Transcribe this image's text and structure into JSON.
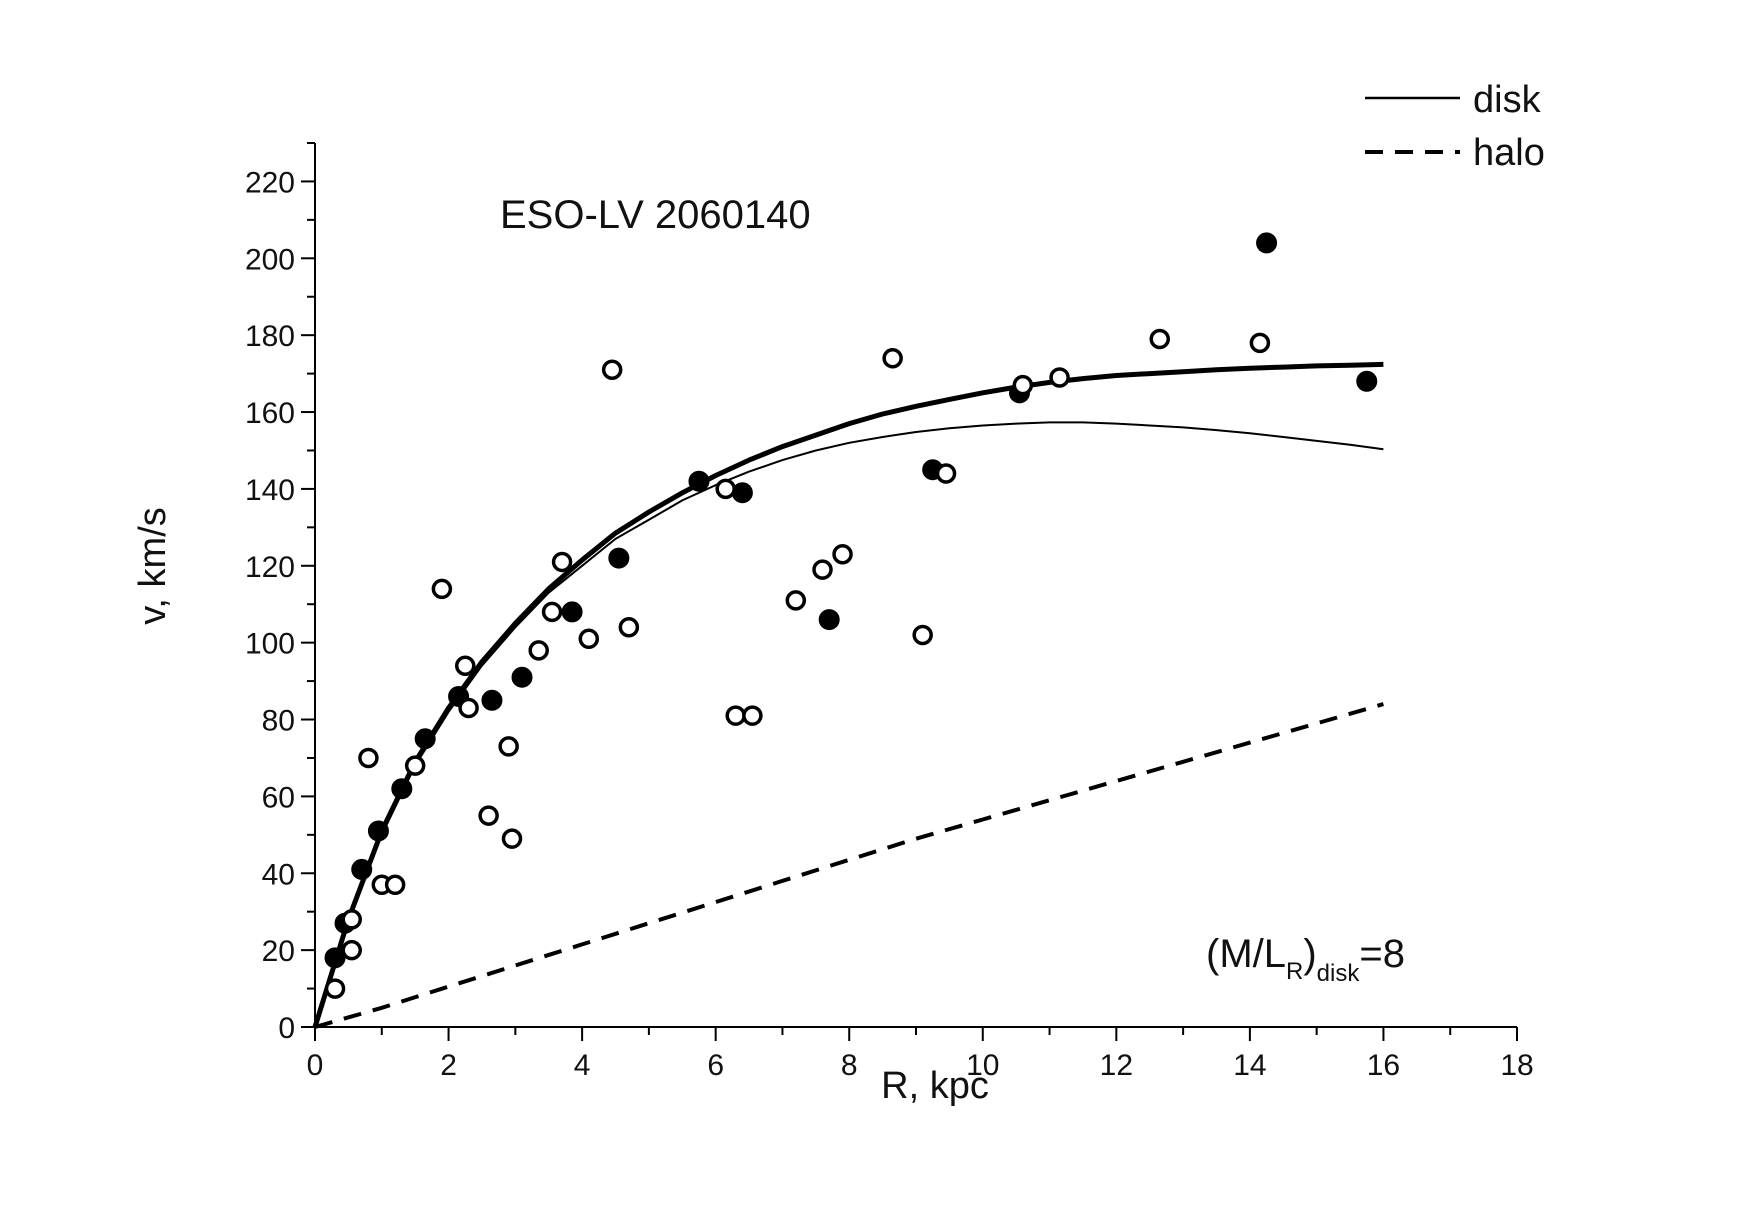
{
  "chart_data": {
    "type": "scatter",
    "title": "ESO-LV 2060140",
    "xlabel": "R, kpc",
    "ylabel": "v, km/s",
    "xlim": [
      0,
      18
    ],
    "ylim": [
      0,
      220
    ],
    "xticks": [
      0,
      2,
      4,
      6,
      8,
      10,
      12,
      14,
      16,
      18
    ],
    "yticks": [
      0,
      20,
      40,
      60,
      80,
      100,
      120,
      140,
      160,
      180,
      200,
      220
    ],
    "grid": false,
    "legend_position": "top-right",
    "annotation": {
      "main": "(M/L",
      "sub1": "R",
      "mid": ")",
      "sub2": "disk",
      "tail": "=8"
    },
    "series": [
      {
        "name": "disk",
        "style": "solid-thin",
        "x": [
          0,
          0.5,
          1,
          1.5,
          2,
          2.5,
          3,
          3.5,
          4,
          4.5,
          5,
          5.5,
          6,
          6.5,
          7,
          7.5,
          8,
          8.5,
          9,
          9.5,
          10,
          10.5,
          11,
          11.5,
          12,
          12.5,
          13,
          13.5,
          14,
          14.5,
          15,
          15.5,
          16
        ],
        "y": [
          0,
          28,
          50,
          68,
          82,
          94,
          104,
          113,
          120,
          127,
          132,
          137,
          141,
          144.5,
          147.5,
          150,
          152,
          153.5,
          154.8,
          155.8,
          156.5,
          157,
          157.3,
          157.3,
          157,
          156.5,
          156,
          155.3,
          154.5,
          153.5,
          152.5,
          151.5,
          150.3
        ]
      },
      {
        "name": "halo",
        "style": "dashed",
        "x": [
          0,
          1,
          2,
          3,
          4,
          5,
          6,
          7,
          8,
          9,
          10,
          11,
          12,
          13,
          14,
          15,
          16
        ],
        "y": [
          0,
          5,
          10.5,
          16,
          21.5,
          27,
          32.5,
          38,
          43.5,
          49,
          54,
          59,
          64,
          69,
          74,
          79,
          84
        ]
      },
      {
        "style": "solid-thick",
        "x": [
          0,
          0.5,
          1,
          1.5,
          2,
          2.5,
          3,
          3.5,
          4,
          4.5,
          5,
          5.5,
          6,
          6.5,
          7,
          7.5,
          8,
          8.5,
          9,
          9.5,
          10,
          10.5,
          11,
          11.5,
          12,
          12.5,
          13,
          13.5,
          14,
          14.5,
          15,
          15.5,
          16
        ],
        "y": [
          0,
          28,
          51,
          69,
          83,
          95,
          105,
          114,
          121.5,
          128.5,
          134,
          139,
          143.5,
          147.5,
          151,
          154,
          157,
          159.5,
          161.5,
          163.3,
          165,
          166.5,
          167.7,
          168.7,
          169.5,
          170,
          170.5,
          171,
          171.4,
          171.7,
          172,
          172.2,
          172.4
        ]
      },
      {
        "style": "filled-markers",
        "x": [
          0.3,
          0.45,
          0.7,
          0.95,
          1.3,
          1.65,
          2.15,
          2.65,
          3.1,
          3.85,
          4.55,
          5.75,
          6.4,
          7.7,
          9.25,
          10.55,
          14.25,
          15.75
        ],
        "y": [
          18,
          27,
          41,
          51,
          62,
          75,
          86,
          85,
          91,
          108,
          122,
          142,
          139,
          106,
          145,
          165,
          204,
          168
        ]
      },
      {
        "style": "open-markers",
        "x": [
          0.3,
          0.55,
          0.55,
          0.8,
          1.0,
          1.2,
          1.5,
          1.9,
          2.25,
          2.3,
          2.6,
          2.9,
          2.95,
          3.35,
          3.55,
          3.7,
          4.1,
          4.45,
          4.7,
          6.15,
          6.3,
          6.55,
          7.2,
          7.6,
          7.9,
          8.65,
          9.1,
          9.45,
          10.6,
          11.15,
          12.65,
          14.15
        ],
        "y": [
          10,
          20,
          28,
          70,
          37,
          37,
          68,
          114,
          94,
          83,
          55,
          73,
          49,
          98,
          108,
          121,
          101,
          171,
          104,
          140,
          81,
          81,
          111,
          119,
          123,
          174,
          102,
          144,
          167,
          169,
          179,
          178
        ]
      }
    ]
  }
}
